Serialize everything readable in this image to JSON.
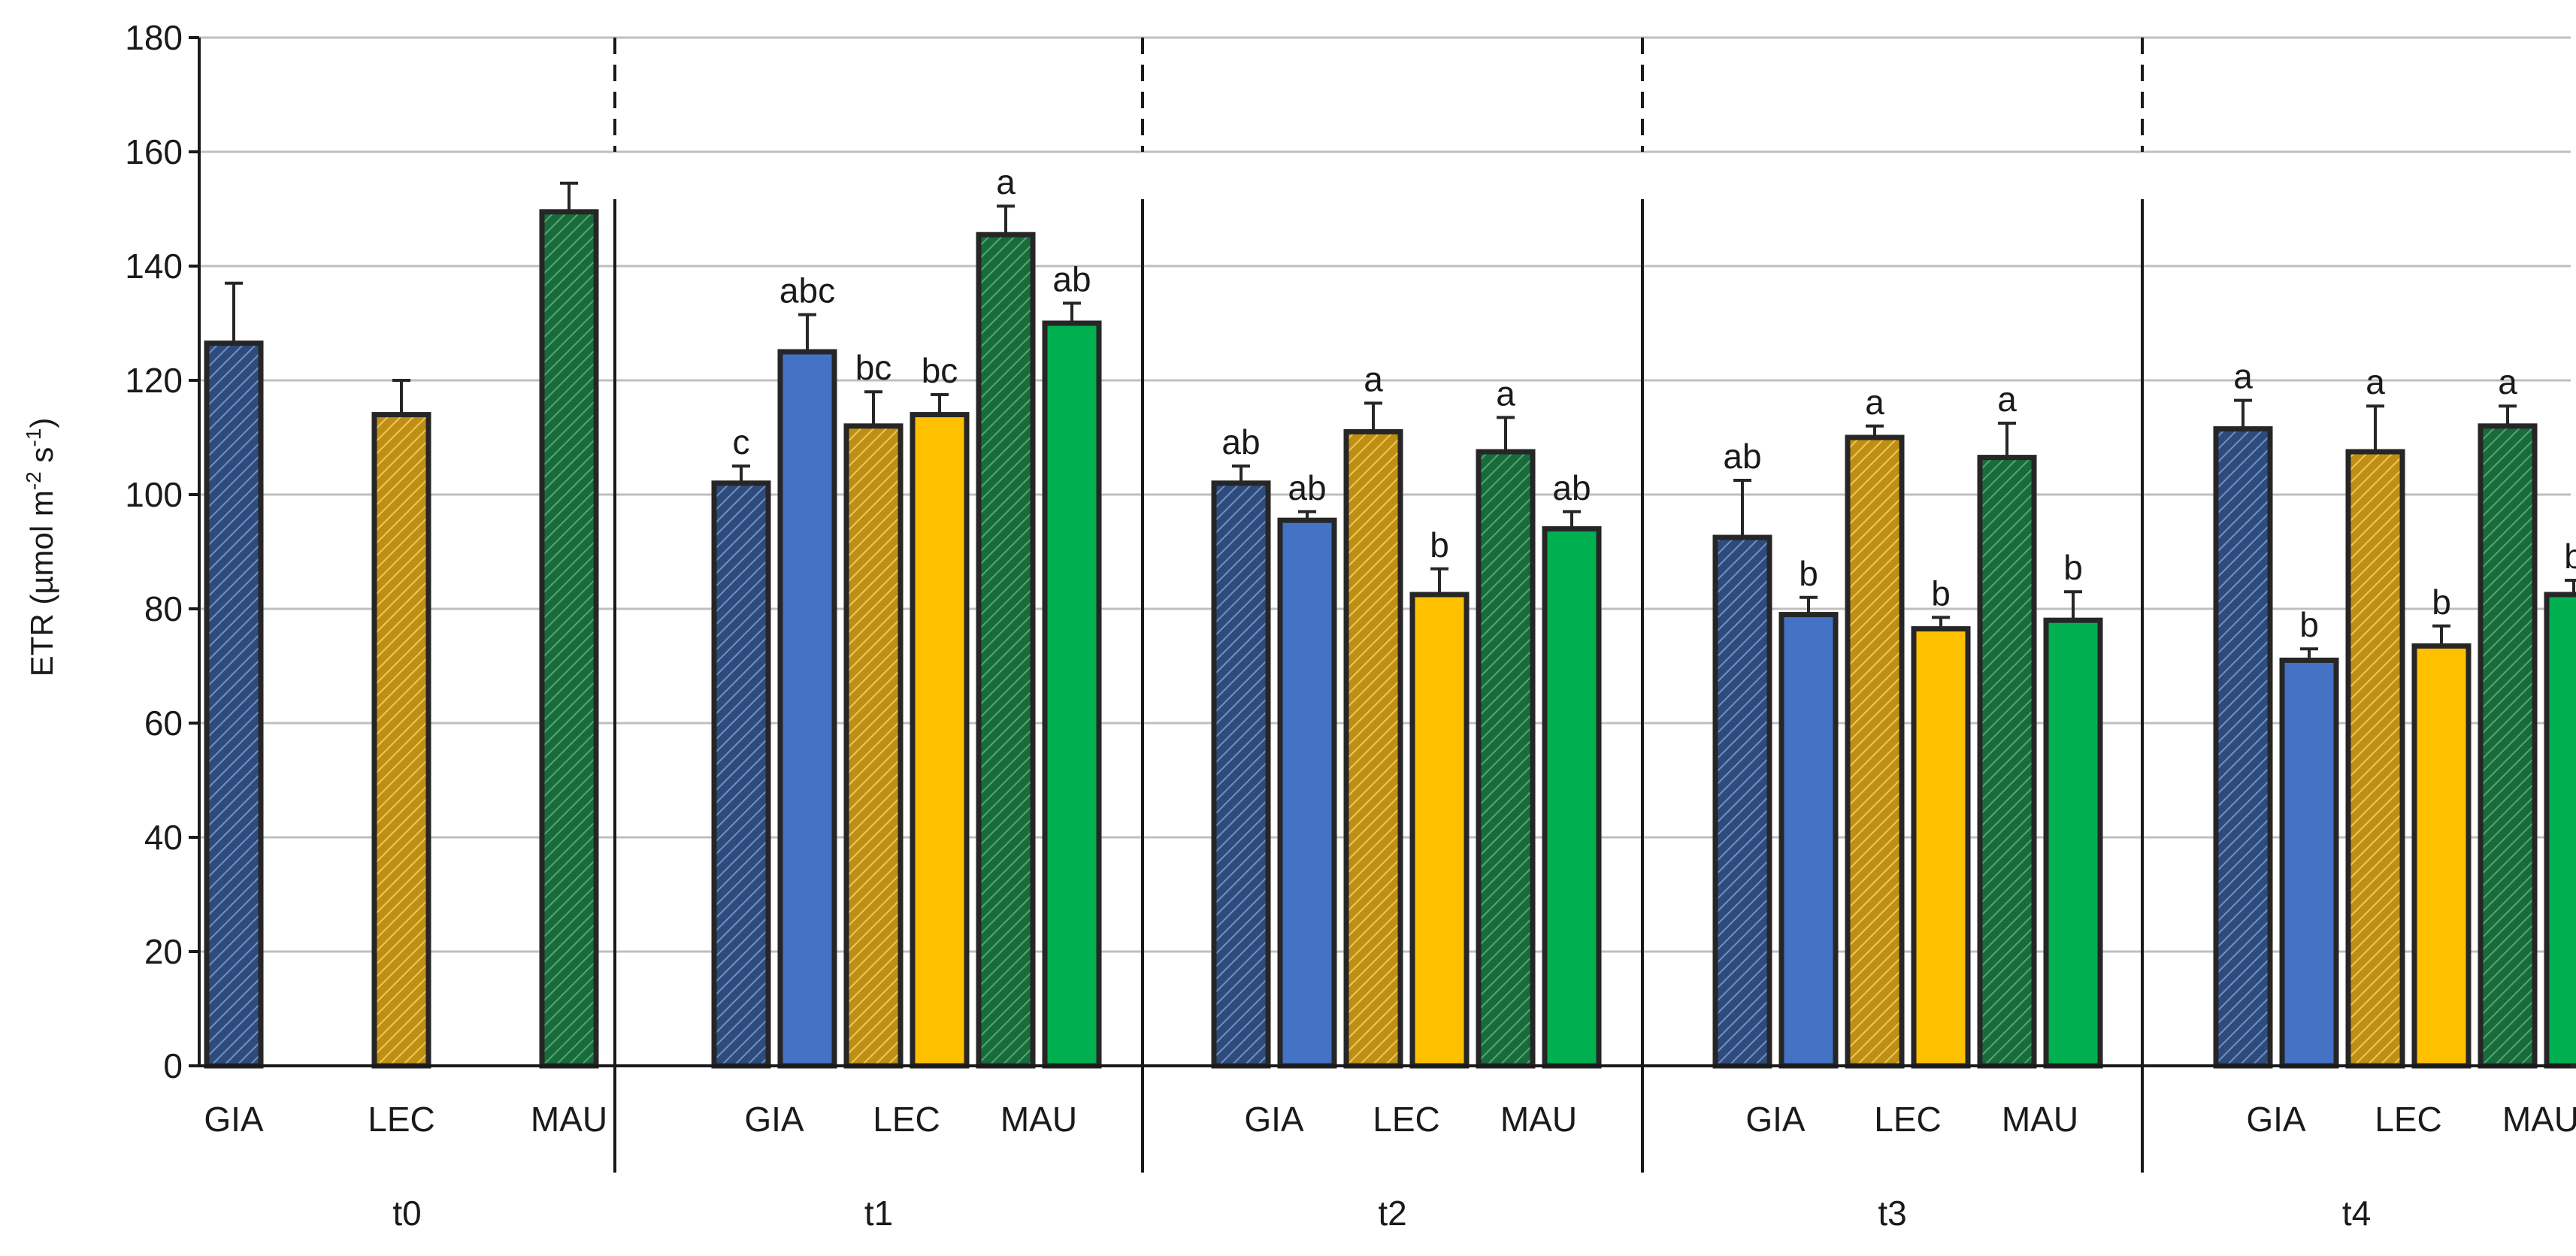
{
  "chart_data": {
    "type": "bar",
    "title": "",
    "xlabel": "",
    "ylabel": {
      "prefix": "ETR (µmol m",
      "sup1": "-2",
      "mid": " s",
      "sup2": "-1",
      "suffix": ")"
    },
    "ylim": [
      0,
      180
    ],
    "yticks": [
      0,
      20,
      40,
      60,
      80,
      100,
      120,
      140,
      160,
      180
    ],
    "grid": true,
    "legend": "none",
    "colors": {
      "GIA_hatched": "#2f4b7c",
      "GIA_solid": "#4472c4",
      "LEC_hatched": "#c99a1e",
      "LEC_solid": "#ffc000",
      "MAU_hatched": "#1f7a45",
      "MAU_solid": "#00b050",
      "gridline": "#bfbfbf",
      "edge": "#262626"
    },
    "groups": [
      {
        "period": "t0",
        "categories": [
          "GIA",
          "LEC",
          "MAU"
        ],
        "bars": [
          {
            "species": "GIA",
            "style": "hatched",
            "value": 126.5,
            "error": 10.5,
            "letter": ""
          },
          {
            "species": "LEC",
            "style": "hatched",
            "value": 114,
            "error": 6,
            "letter": ""
          },
          {
            "species": "MAU",
            "style": "hatched",
            "value": 149.5,
            "error": 5,
            "letter": ""
          }
        ]
      },
      {
        "period": "t1",
        "categories": [
          "GIA",
          "LEC",
          "MAU"
        ],
        "bars": [
          {
            "species": "GIA",
            "style": "hatched",
            "value": 102,
            "error": 3,
            "letter": "c"
          },
          {
            "species": "GIA",
            "style": "solid",
            "value": 125,
            "error": 6.5,
            "letter": "abc"
          },
          {
            "species": "LEC",
            "style": "hatched",
            "value": 112,
            "error": 6,
            "letter": "bc"
          },
          {
            "species": "LEC",
            "style": "solid",
            "value": 114,
            "error": 3.5,
            "letter": "bc"
          },
          {
            "species": "MAU",
            "style": "hatched",
            "value": 145.5,
            "error": 5,
            "letter": "a"
          },
          {
            "species": "MAU",
            "style": "solid",
            "value": 130,
            "error": 3.5,
            "letter": "ab"
          }
        ]
      },
      {
        "period": "t2",
        "categories": [
          "GIA",
          "LEC",
          "MAU"
        ],
        "bars": [
          {
            "species": "GIA",
            "style": "hatched",
            "value": 102,
            "error": 3,
            "letter": "ab"
          },
          {
            "species": "GIA",
            "style": "solid",
            "value": 95.5,
            "error": 1.5,
            "letter": "ab"
          },
          {
            "species": "LEC",
            "style": "hatched",
            "value": 111,
            "error": 5,
            "letter": "a"
          },
          {
            "species": "LEC",
            "style": "solid",
            "value": 82.5,
            "error": 4.5,
            "letter": "b"
          },
          {
            "species": "MAU",
            "style": "hatched",
            "value": 107.5,
            "error": 6,
            "letter": "a"
          },
          {
            "species": "MAU",
            "style": "solid",
            "value": 94,
            "error": 3,
            "letter": "ab"
          }
        ]
      },
      {
        "period": "t3",
        "categories": [
          "GIA",
          "LEC",
          "MAU"
        ],
        "bars": [
          {
            "species": "GIA",
            "style": "hatched",
            "value": 92.5,
            "error": 10,
            "letter": "ab"
          },
          {
            "species": "GIA",
            "style": "solid",
            "value": 79,
            "error": 3,
            "letter": "b"
          },
          {
            "species": "LEC",
            "style": "hatched",
            "value": 110,
            "error": 2,
            "letter": "a"
          },
          {
            "species": "LEC",
            "style": "solid",
            "value": 76.5,
            "error": 2,
            "letter": "b"
          },
          {
            "species": "MAU",
            "style": "hatched",
            "value": 106.5,
            "error": 6,
            "letter": "a"
          },
          {
            "species": "MAU",
            "style": "solid",
            "value": 78,
            "error": 5,
            "letter": "b"
          }
        ]
      },
      {
        "period": "t4",
        "categories": [
          "GIA",
          "LEC",
          "MAU"
        ],
        "bars": [
          {
            "species": "GIA",
            "style": "hatched",
            "value": 111.5,
            "error": 5,
            "letter": "a"
          },
          {
            "species": "GIA",
            "style": "solid",
            "value": 71,
            "error": 2,
            "letter": "b"
          },
          {
            "species": "LEC",
            "style": "hatched",
            "value": 107.5,
            "error": 8,
            "letter": "a"
          },
          {
            "species": "LEC",
            "style": "solid",
            "value": 73.5,
            "error": 3.5,
            "letter": "b"
          },
          {
            "species": "MAU",
            "style": "hatched",
            "value": 112,
            "error": 3.5,
            "letter": "a"
          },
          {
            "species": "MAU",
            "style": "solid",
            "value": 82.5,
            "error": 2.5,
            "letter": "b"
          }
        ]
      }
    ]
  }
}
